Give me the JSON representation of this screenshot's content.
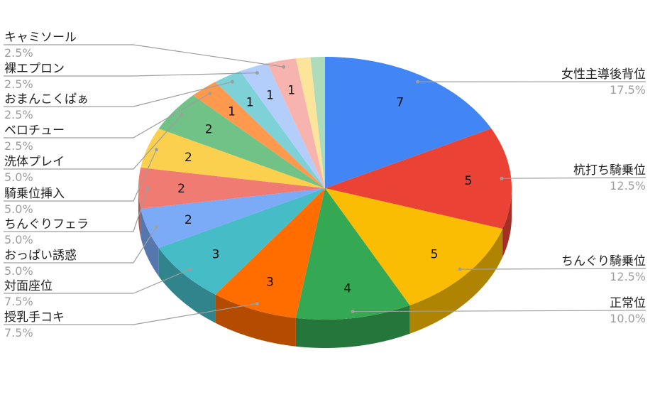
{
  "chart_data": {
    "type": "pie",
    "style": "3d",
    "start": "top",
    "direction": "clockwise",
    "legend": "labeled leader lines",
    "slices": [
      {
        "label": "女性主導後背位",
        "value": 7,
        "percent": "17.5%",
        "color": "#4285f4",
        "side": "right"
      },
      {
        "label": "杭打ち騎乗位",
        "value": 5,
        "percent": "12.5%",
        "color": "#ea4335",
        "side": "right"
      },
      {
        "label": "ちんぐり騎乗位",
        "value": 5,
        "percent": "12.5%",
        "color": "#fbbc04",
        "side": "right"
      },
      {
        "label": "正常位",
        "value": 4,
        "percent": "10.0%",
        "color": "#34a853",
        "side": "right"
      },
      {
        "label": "授乳手コキ",
        "value": 3,
        "percent": "7.5%",
        "color": "#ff6d01",
        "side": "left"
      },
      {
        "label": "対面座位",
        "value": 3,
        "percent": "7.5%",
        "color": "#46bdc6",
        "side": "left"
      },
      {
        "label": "おっぱい誘惑",
        "value": 2,
        "percent": "5.0%",
        "color": "#7baaf7",
        "side": "left"
      },
      {
        "label": "ちんぐりフェラ",
        "value": 2,
        "percent": "5.0%",
        "color": "#f07b72",
        "side": "left"
      },
      {
        "label": "騎乗位挿入",
        "value": 2,
        "percent": "5.0%",
        "color": "#fcd04f",
        "side": "left"
      },
      {
        "label": "洗体プレイ",
        "value": 2,
        "percent": "5.0%",
        "color": "#71c287",
        "side": "left"
      },
      {
        "label": "ベロチュー",
        "value": 1,
        "percent": "2.5%",
        "color": "#ff994d",
        "side": "left"
      },
      {
        "label": "おまんこくぱぁ",
        "value": 1,
        "percent": "2.5%",
        "color": "#7ed1d7",
        "side": "left"
      },
      {
        "label": "裸エプロン",
        "value": 1,
        "percent": "2.5%",
        "color": "#b3cefb",
        "side": "left"
      },
      {
        "label": "キャミソール",
        "value": 1,
        "percent": "2.5%",
        "color": "#f7b4ae",
        "side": "left"
      },
      {
        "label": "",
        "value": 0.5,
        "color": "#fde49b"
      },
      {
        "label": "",
        "value": 0.5,
        "color": "#aedcba"
      }
    ]
  }
}
